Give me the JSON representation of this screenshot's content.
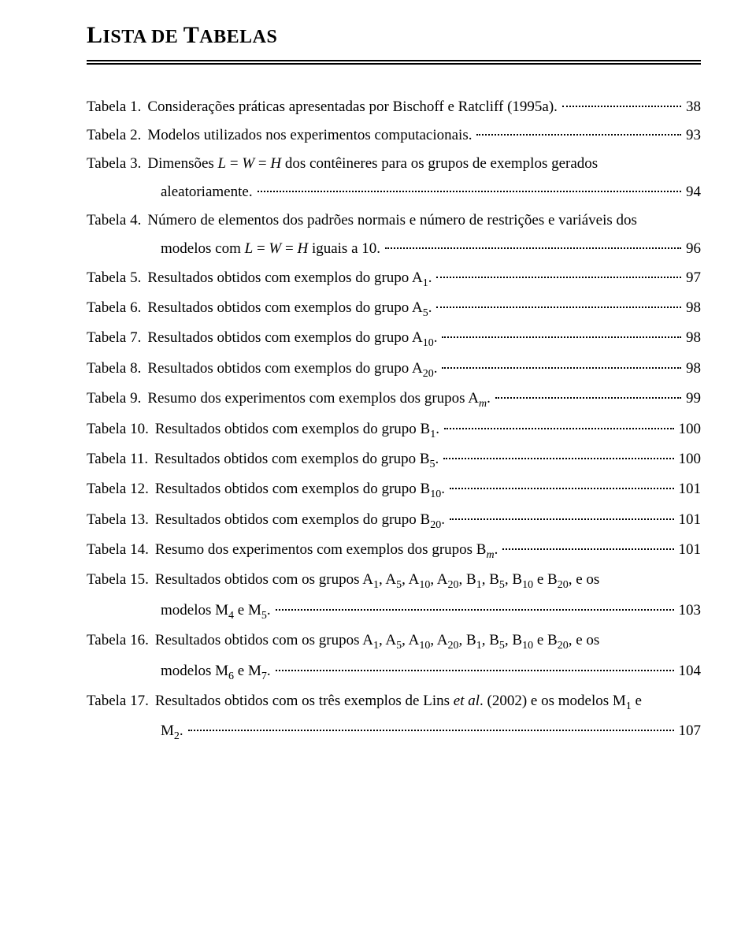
{
  "title_html": "L<span class='sc'>ISTA DE </span>T<span class='sc'>ABELAS</span>",
  "entries": [
    {
      "label": "Tabela 1.",
      "desc_html": "Considerações práticas apresentadas por Bischoff e Ratcliff (1995a).",
      "page": "38"
    },
    {
      "label": "Tabela 2.",
      "desc_html": "Modelos utilizados nos experimentos computacionais.",
      "page": "93"
    },
    {
      "label": "Tabela 3.",
      "desc_html": "Dimensões <span class='math'>L</span> = <span class='math'>W</span> = <span class='math'>H</span>  dos contêineres para os grupos de exemplos gerados",
      "cont_html": "aleatoriamente.",
      "page": "94"
    },
    {
      "label": "Tabela 4.",
      "desc_html": "Número de elementos dos padrões normais e número de restrições e variáveis dos",
      "cont_html": "modelos com <span class='math'>L</span> = <span class='math'>W</span> = <span class='math'>H</span>  iguais a 10.",
      "page": "96"
    },
    {
      "label": "Tabela 5.",
      "desc_html": "Resultados obtidos com exemplos do grupo A<span class='sub'>1</span>.",
      "page": "97"
    },
    {
      "label": "Tabela 6.",
      "desc_html": "Resultados obtidos com exemplos do grupo A<span class='sub'>5</span>.",
      "page": "98"
    },
    {
      "label": "Tabela 7.",
      "desc_html": "Resultados obtidos com exemplos do grupo A<span class='sub'>10</span>.",
      "page": "98"
    },
    {
      "label": "Tabela 8.",
      "desc_html": "Resultados obtidos com exemplos do grupo A<span class='sub'>20</span>.",
      "page": "98"
    },
    {
      "label": "Tabela 9.",
      "desc_html": "Resumo dos experimentos com exemplos dos grupos A<span class='subm'>m</span>.",
      "page": "99"
    },
    {
      "label": "Tabela 10.",
      "desc_html": "Resultados obtidos com exemplos do grupo B<span class='sub'>1</span>.",
      "page": "100"
    },
    {
      "label": "Tabela 11.",
      "desc_html": "Resultados obtidos com exemplos do grupo B<span class='sub'>5</span>.",
      "page": "100"
    },
    {
      "label": "Tabela 12.",
      "desc_html": "Resultados obtidos com exemplos do grupo B<span class='sub'>10</span>.",
      "page": "101"
    },
    {
      "label": "Tabela 13.",
      "desc_html": "Resultados obtidos com exemplos do grupo B<span class='sub'>20</span>.",
      "page": "101"
    },
    {
      "label": "Tabela 14.",
      "desc_html": "Resumo dos experimentos com exemplos dos grupos B<span class='subm'>m</span>.",
      "page": "101"
    },
    {
      "label": "Tabela 15.",
      "desc_html": "Resultados obtidos com os grupos A<span class='sub'>1</span>, A<span class='sub'>5</span>, A<span class='sub'>10</span>, A<span class='sub'>20</span>, B<span class='sub'>1</span>, B<span class='sub'>5</span>, B<span class='sub'>10</span> e B<span class='sub'>20</span>, e os",
      "cont_html": "modelos M<span class='sub'>4</span> e M<span class='sub'>5</span>.",
      "page": "103"
    },
    {
      "label": "Tabela 16.",
      "desc_html": "Resultados obtidos com os grupos A<span class='sub'>1</span>, A<span class='sub'>5</span>, A<span class='sub'>10</span>, A<span class='sub'>20</span>, B<span class='sub'>1</span>, B<span class='sub'>5</span>, B<span class='sub'>10</span> e B<span class='sub'>20</span>, e os",
      "cont_html": "modelos M<span class='sub'>6</span> e M<span class='sub'>7</span>.",
      "page": "104"
    },
    {
      "label": "Tabela 17.",
      "desc_html": "Resultados obtidos com os três exemplos de Lins <span class='it'>et al</span>. (2002) e os modelos M<span class='sub'>1</span> e",
      "cont_html": "M<span class='sub'>2</span>.",
      "page": "107"
    }
  ]
}
